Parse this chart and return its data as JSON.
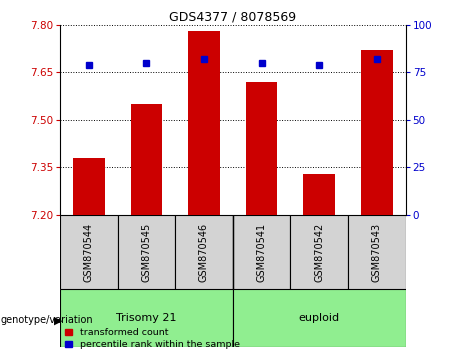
{
  "title": "GDS4377 / 8078569",
  "categories": [
    "GSM870544",
    "GSM870545",
    "GSM870546",
    "GSM870541",
    "GSM870542",
    "GSM870543"
  ],
  "bar_values": [
    7.38,
    7.55,
    7.78,
    7.62,
    7.33,
    7.72
  ],
  "percentile_values": [
    79,
    80,
    82,
    80,
    79,
    82
  ],
  "bar_bottom": 7.2,
  "ylim_left": [
    7.2,
    7.8
  ],
  "ylim_right": [
    0,
    100
  ],
  "yticks_left": [
    7.2,
    7.35,
    7.5,
    7.65,
    7.8
  ],
  "yticks_right": [
    0,
    25,
    50,
    75,
    100
  ],
  "bar_color": "#cc0000",
  "dot_color": "#0000cc",
  "background_plot": "#ffffff",
  "trisomy_label": "Trisomy 21",
  "euploid_label": "euploid",
  "group_bg_color": "#90ee90",
  "sample_bg_color": "#d3d3d3",
  "legend_red_label": "transformed count",
  "legend_blue_label": "percentile rank within the sample",
  "genotype_label": "genotype/variation",
  "bar_width": 0.55,
  "title_fontsize": 9,
  "tick_fontsize": 7.5,
  "label_fontsize": 8
}
